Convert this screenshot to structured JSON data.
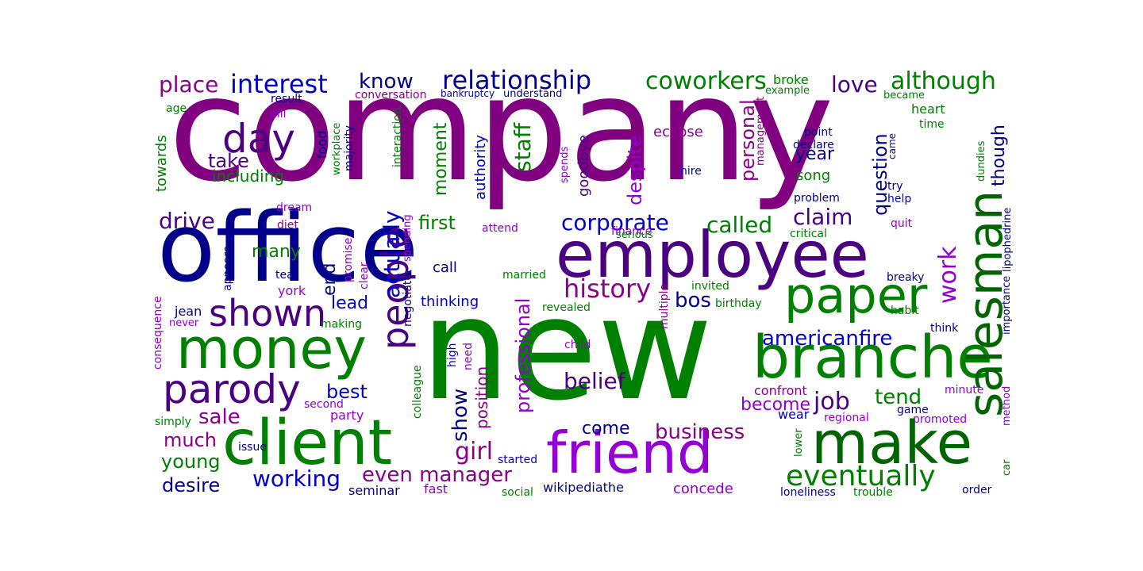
{
  "colors": {
    "purple": "#800080",
    "navy": "#00008b",
    "green": "#008000",
    "darkgreen": "#006400",
    "blue": "#0000cd",
    "indigo": "#4b0082",
    "violet": "#9400d3",
    "magenta": "#8b008b",
    "royal": "#1e1ee0"
  },
  "words": {
    "company": "company",
    "new": "new",
    "office": "office",
    "employee": "employee",
    "client": "client",
    "friend": "friend",
    "salesman": "salesman",
    "money": "money",
    "branche": "branche",
    "make": "make",
    "paper": "paper",
    "parody": "parody",
    "day": "day",
    "shown": "shown",
    "people": "people",
    "relationship": "relationship",
    "interest": "interest",
    "coworkers": "coworkers",
    "although": "although",
    "eventually": "eventually",
    "work": "work",
    "history": "history",
    "business": "business",
    "working": "working",
    "even_manager": "even manager",
    "corporate": "corporate",
    "called": "called",
    "claim": "claim",
    "drive": "drive",
    "place": "place",
    "know": "know",
    "love": "love",
    "actually": "actually",
    "staff": "staff",
    "moment": "moment",
    "despite": "despite",
    "personal": "personal",
    "question": "question",
    "though": "though",
    "year": "year",
    "take": "take",
    "including": "including",
    "first": "first",
    "many": "many",
    "end": "end",
    "lead": "lead",
    "bos": "bos",
    "americanfire": "americanfire",
    "job": "job",
    "tend": "tend",
    "become": "become",
    "belief": "belief",
    "show": "show",
    "girl": "girl",
    "professional": "professional",
    "position": "position",
    "best": "best",
    "sale": "sale",
    "much": "much",
    "young": "young",
    "desire": "desire",
    "come": "come",
    "thinking": "thinking",
    "concede": "concede",
    "song": "song",
    "eclipse": "eclipse",
    "goodbye": "goodbye",
    "authority": "authority",
    "towards": "towards",
    "food": "food",
    "workplace": "workplace",
    "majority": "majority",
    "interaction": "interaction",
    "broke": "broke",
    "example": "example",
    "became": "became",
    "heart": "heart",
    "time": "time",
    "point": "point",
    "declare": "declare",
    "hire": "hire",
    "management": "management",
    "spends": "spends",
    "dundies": "dundies",
    "came": "came",
    "try": "try",
    "help": "help",
    "problem": "problem",
    "critical": "critical",
    "serious": "serious",
    "quit": "quit",
    "lipophedrine": "lipophedrine",
    "importance": "importance",
    "breaky": "breaky",
    "habit": "habit",
    "think": "think",
    "birthday": "birthday",
    "invited": "invited",
    "revealed": "revealed",
    "married": "married",
    "multiple": "multiple",
    "child": "child",
    "finance": "finance",
    "confront": "confront",
    "wear": "wear",
    "regional": "regional",
    "game": "game",
    "promoted": "promoted",
    "minute": "minute",
    "method": "method",
    "car": "car",
    "lower": "lower",
    "order": "order",
    "trouble": "trouble",
    "loneliness": "loneliness",
    "wikipediathe": "wikipediathe",
    "social": "social",
    "fast": "fast",
    "seminar": "seminar",
    "started": "started",
    "issue": "issue",
    "simply": "simply",
    "second": "second",
    "party": "party",
    "colleague": "colleague",
    "high": "high",
    "need": "need",
    "negotiate": "negotiate",
    "call": "call",
    "spending": "spending",
    "clear": "clear",
    "promise": "promise",
    "attend": "attend",
    "appears": "appears",
    "tear": "tear",
    "york": "york",
    "jean": "jean",
    "never": "never",
    "making": "making",
    "consequence": "consequence",
    "diet": "diet",
    "dream": "dream",
    "pill": "pill",
    "age": "age",
    "result": "result",
    "conversation": "conversation",
    "bankruptcy": "bankruptcy",
    "understand": "understand"
  }
}
